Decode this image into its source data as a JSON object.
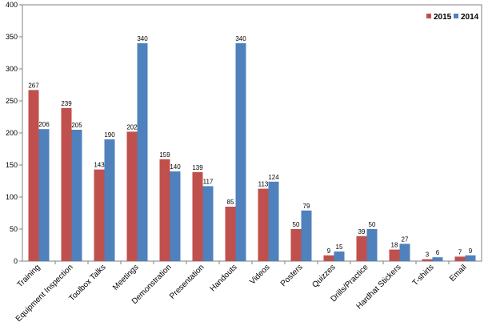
{
  "chart_data": {
    "type": "bar",
    "categories": [
      "Training",
      "Equipment Inspection",
      "Toolbox Talks",
      "Meetings",
      "Demonstration",
      "Presentation",
      "Handouts",
      "Videos",
      "Posters",
      "Quizzes",
      "Drills/Practice",
      "Hardhat Stickers",
      "T-shirts",
      "Email"
    ],
    "series": [
      {
        "name": "2015",
        "color": "#C0504D",
        "values": [
          267,
          239,
          143,
          202,
          159,
          139,
          85,
          113,
          50,
          9,
          39,
          18,
          3,
          7
        ]
      },
      {
        "name": "2014",
        "color": "#4F81BD",
        "values": [
          206,
          205,
          190,
          340,
          140,
          117,
          340,
          124,
          79,
          15,
          50,
          27,
          6,
          9
        ]
      }
    ],
    "ylim": [
      0,
      400
    ],
    "yticks": [
      0,
      50,
      100,
      150,
      200,
      250,
      300,
      350,
      400
    ],
    "grid": false,
    "legend": "top-right",
    "data_labels": true
  }
}
